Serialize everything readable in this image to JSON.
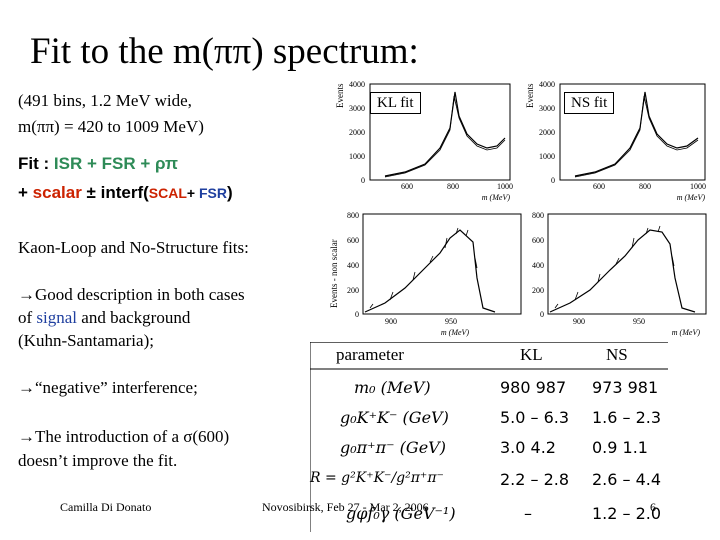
{
  "title": "Fit to the m(ππ) spectrum:",
  "intro": {
    "line1": "(491 bins, 1.2 MeV wide,",
    "line2": "m(ππ) =  420 to 1009 MeV)"
  },
  "fit_line1": {
    "prefix": "Fit : ",
    "isr": "ISR + FSR + ρπ"
  },
  "fit_line2": {
    "prefix": "+ ",
    "scalar": "scalar",
    "interf": " ± interf(",
    "scal": "SCAL",
    "plus": "+ ",
    "fsr": "FSR",
    "close": ")"
  },
  "kaon_loop": "Kaon-Loop and No-Structure fits:",
  "bullets": {
    "b1_line1": "→Good description in both cases",
    "b1_line2a": "of ",
    "b1_signal": "signal",
    "b1_line2b": " and background",
    "b1_line3": "(Kuhn-Santamaria);",
    "b2": "→“negative” interference;",
    "b3_line1": "→The introduction of a σ(600)",
    "b3_line2": "doesn’t improve the fit."
  },
  "plots": {
    "top_left_label": "KL fit",
    "top_right_label": "NS fit",
    "top_ylabel": "Events",
    "bottom_ylabel": "Events - non scalar",
    "top_yticks": [
      "4000",
      "3000",
      "2000",
      "1000",
      "0"
    ],
    "top_xticks": [
      "600",
      "800",
      "1000"
    ],
    "top_xlabel": "m (MeV)",
    "bottom_yticks": [
      "800",
      "600",
      "400",
      "200",
      "0"
    ],
    "bottom_xticks": [
      "900",
      "950"
    ],
    "bottom_xlabel": "m (MeV)"
  },
  "table": {
    "header": {
      "parameter": "parameter",
      "kl": "KL",
      "ns": "NS"
    },
    "rows": [
      {
        "param": "m₀ (MeV)",
        "kl": "980   987",
        "ns": "973   981"
      },
      {
        "param": "g₀K⁺K⁻  (GeV)",
        "kl": "5.0 –  6.3",
        "ns": "1.6 –  2.3"
      },
      {
        "param": "g₀π⁺π⁻  (GeV)",
        "kl": "3.0    4.2",
        "ns": "0.9   1.1"
      },
      {
        "param": "R = g²K⁺K⁻/g²π⁺π⁻",
        "kl": "2.2 –  2.8",
        "ns": "2.6 –  4.4"
      },
      {
        "param": "gφf₀γ  (GeV⁻¹)",
        "kl": "–",
        "ns": "1.2 –  2.0"
      }
    ]
  },
  "footer": {
    "author": "Camilla Di Donato",
    "venue": "Novosibirsk, Feb 27 - Mar 2, 2006",
    "page": "6"
  }
}
